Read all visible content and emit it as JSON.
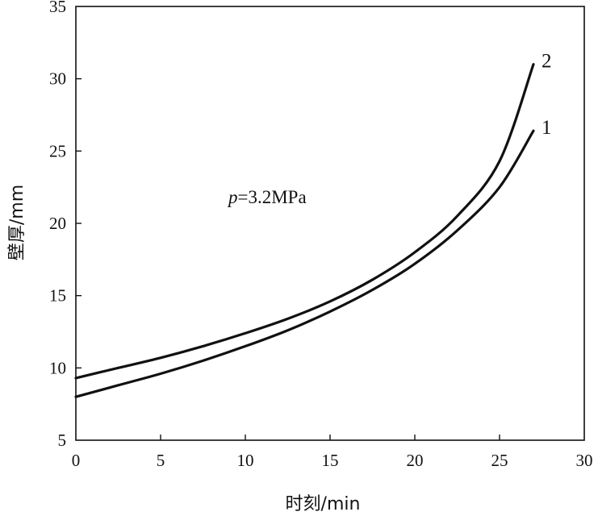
{
  "chart_data": {
    "type": "line",
    "xlabel": "时刻/min",
    "ylabel": "壁厚/mm",
    "xlim": [
      0,
      30
    ],
    "ylim": [
      5,
      35
    ],
    "xticks": [
      0,
      5,
      10,
      15,
      20,
      25,
      30
    ],
    "yticks": [
      5,
      10,
      15,
      20,
      25,
      30,
      35
    ],
    "grid": false,
    "legend": "none",
    "annotation": {
      "var": "p",
      "text": "=3.2MPa"
    },
    "series": [
      {
        "label": "1",
        "x": [
          0,
          2.5,
          5,
          7.5,
          10,
          12.5,
          15,
          17.5,
          20,
          22.5,
          25,
          27
        ],
        "y": [
          8.0,
          8.8,
          9.6,
          10.5,
          11.5,
          12.6,
          13.9,
          15.4,
          17.2,
          19.5,
          22.5,
          26.4
        ]
      },
      {
        "label": "2",
        "x": [
          0,
          2.5,
          5,
          7.5,
          10,
          12.5,
          15,
          17.5,
          20,
          22.5,
          25,
          27
        ],
        "y": [
          9.3,
          10.0,
          10.7,
          11.5,
          12.4,
          13.4,
          14.6,
          16.1,
          18.0,
          20.5,
          24.3,
          31.0
        ]
      }
    ]
  }
}
